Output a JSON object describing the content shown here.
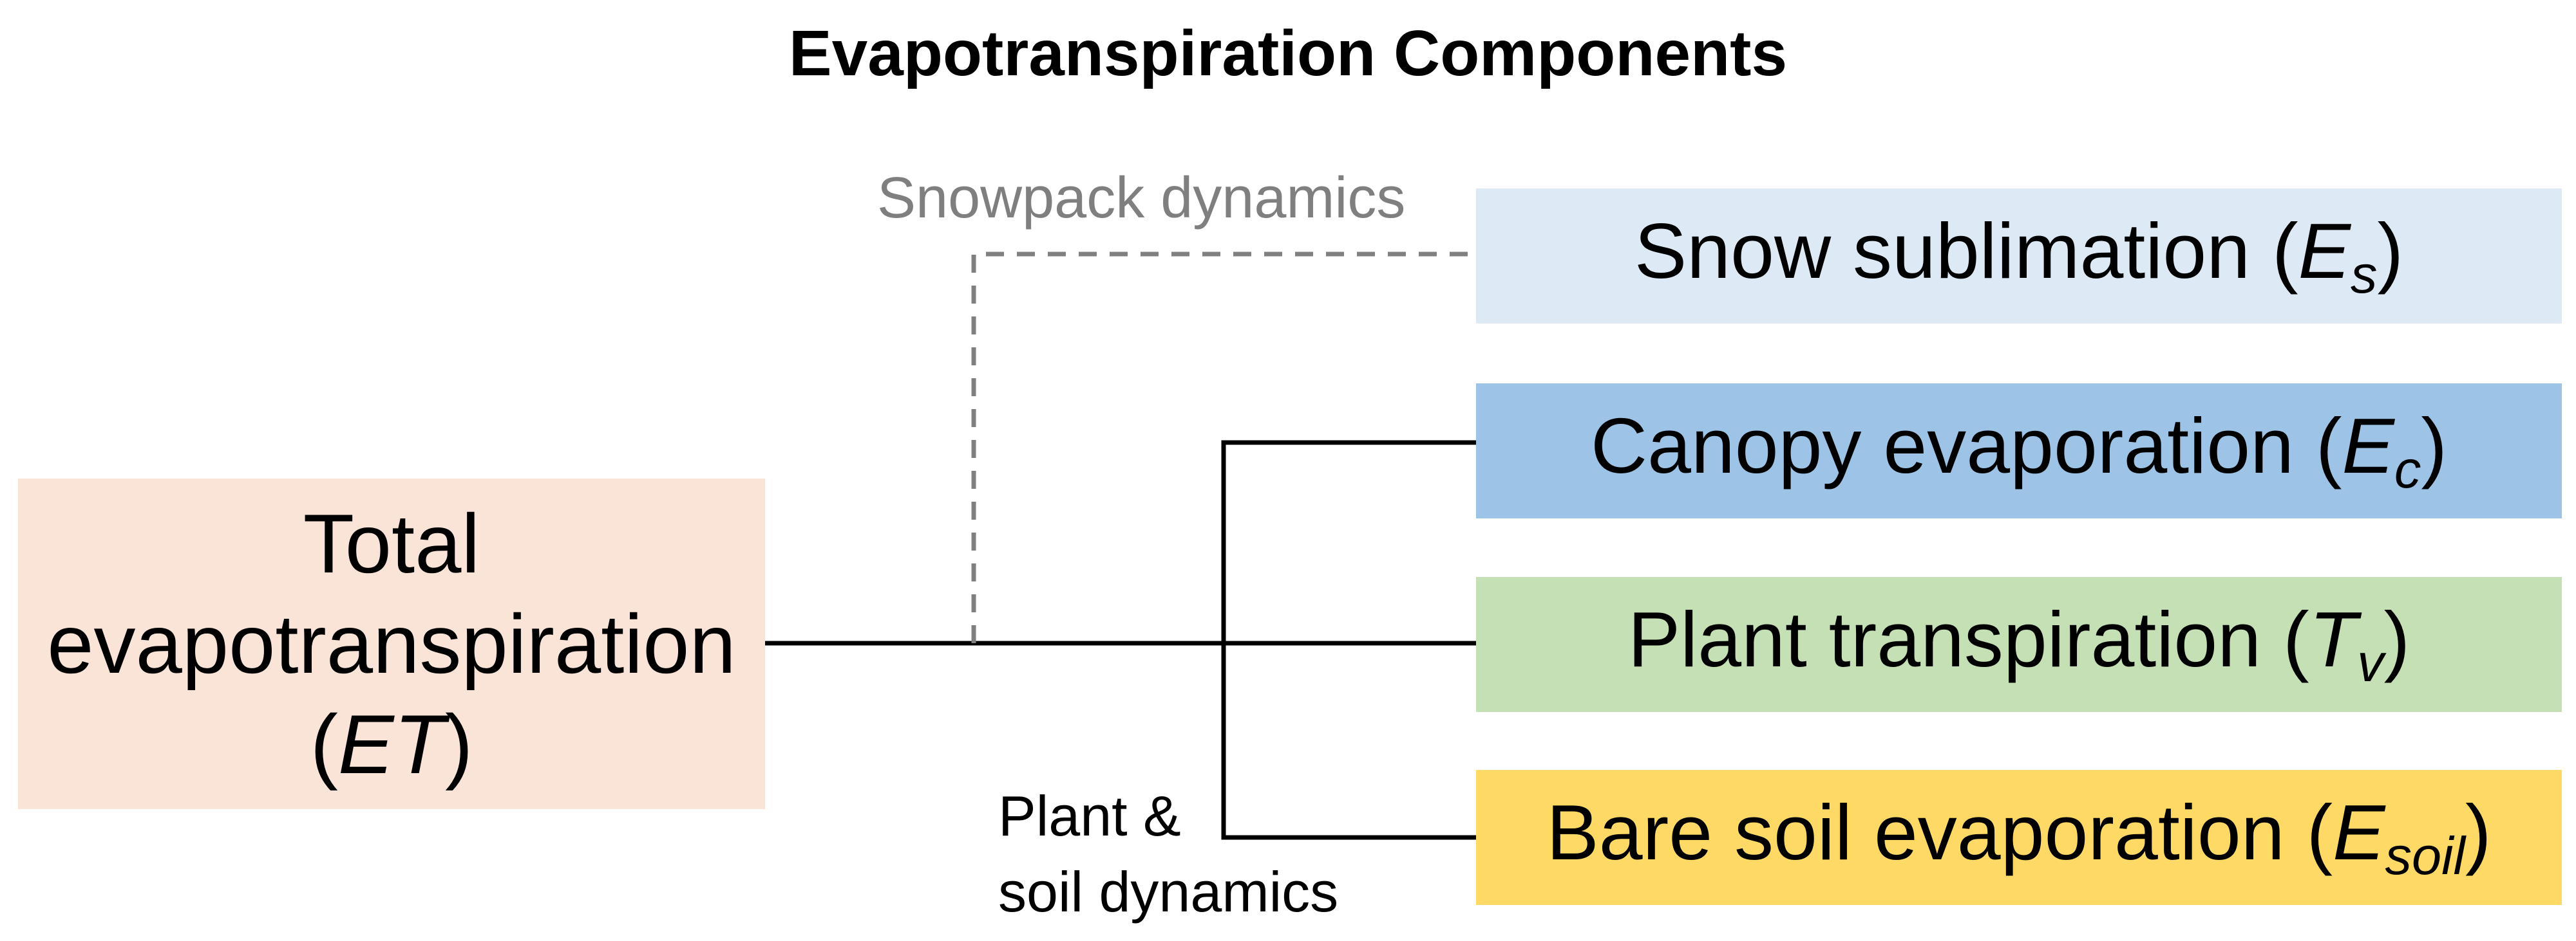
{
  "title": "Evapotranspiration Components",
  "source": {
    "line1": "Total",
    "line2": "evapotranspiration",
    "symbol": "ET",
    "color": "#FAE4D8"
  },
  "components": [
    {
      "label": "Snow sublimation",
      "symbol": "E",
      "subscript": "s",
      "color": "#DDE9F5"
    },
    {
      "label": "Canopy evaporation",
      "symbol": "E",
      "subscript": "c",
      "color": "#9DC3E6"
    },
    {
      "label": "Plant transpiration",
      "symbol": "T",
      "subscript": "v",
      "color": "#C5E0B4"
    },
    {
      "label": "Bare soil evaporation",
      "symbol": "E",
      "subscript": "soil",
      "color": "#FFD966"
    }
  ],
  "annotations": {
    "snowpack": "Snowpack dynamics",
    "plant_soil_line1": "Plant &",
    "plant_soil_line2": "soil dynamics"
  },
  "colors": {
    "line": "#000000",
    "dashed_line": "#808080"
  }
}
